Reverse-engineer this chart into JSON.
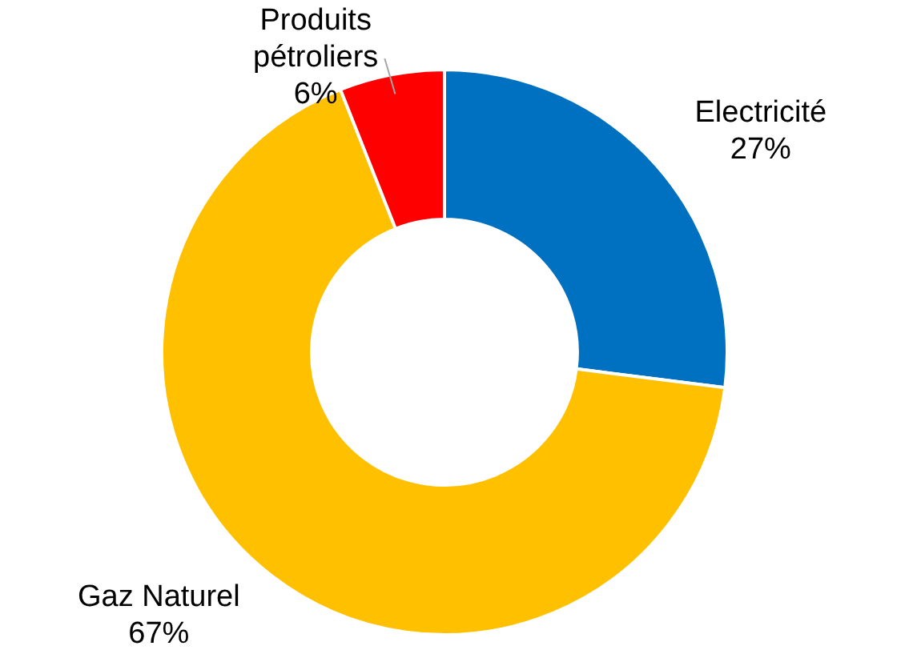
{
  "chart_data": {
    "type": "donut",
    "categories": [
      "Electricité",
      "Gaz Naturel",
      "Produits pétroliers"
    ],
    "values": [
      27,
      67,
      6
    ],
    "value_labels": [
      "27%",
      "67%",
      "6%"
    ],
    "colors": [
      "#0070c0",
      "#ffc000",
      "#ff0000"
    ],
    "legend": false
  }
}
